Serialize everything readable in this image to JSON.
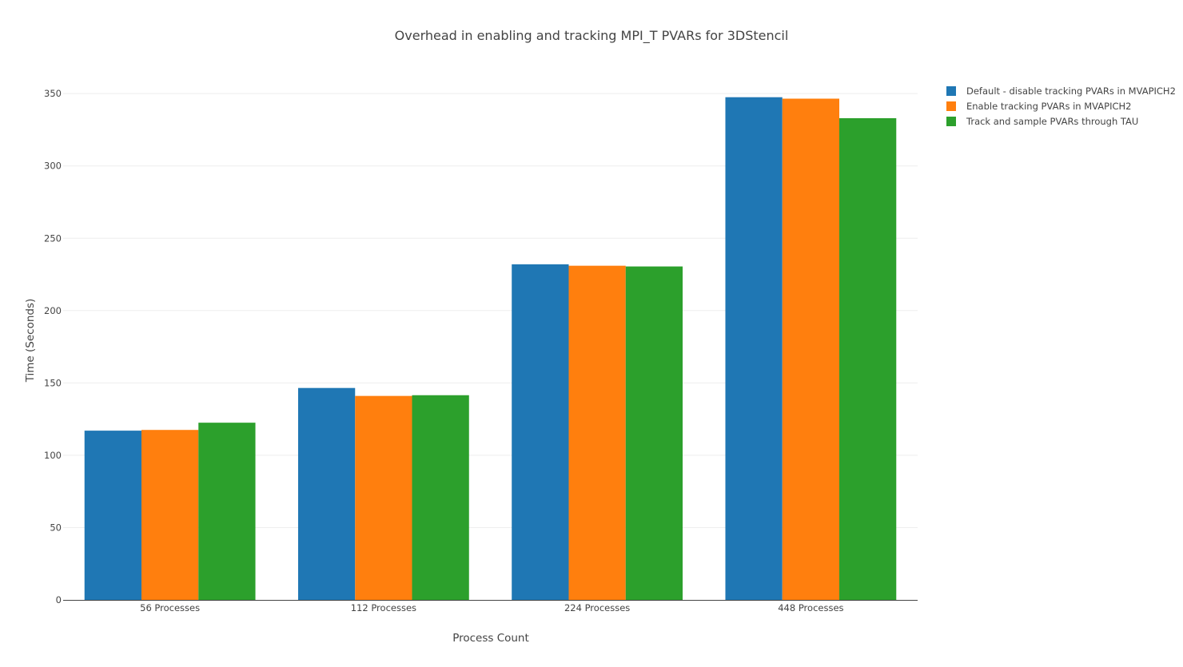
{
  "chart_data": {
    "type": "bar",
    "title": "Overhead in enabling and tracking MPI_T PVARs for 3DStencil",
    "xlabel": "Process Count",
    "ylabel": "Time (Seconds)",
    "categories": [
      "56 Processes",
      "112 Processes",
      "224 Processes",
      "448 Processes"
    ],
    "series": [
      {
        "name": "Default - disable tracking PVARs in MVAPICH2",
        "color": "#1f77b4",
        "values": [
          117,
          146.5,
          232,
          347.5
        ]
      },
      {
        "name": "Enable tracking PVARs in MVAPICH2",
        "color": "#ff7f0e",
        "values": [
          117.5,
          141,
          231,
          346.5
        ]
      },
      {
        "name": "Track and sample PVARs through TAU",
        "color": "#2ca02c",
        "values": [
          122.5,
          141.5,
          230.5,
          333
        ]
      }
    ],
    "ylim": [
      0,
      365
    ],
    "yticks": [
      0,
      50,
      100,
      150,
      200,
      250,
      300,
      350
    ],
    "grid": true,
    "legend": "top-right"
  }
}
